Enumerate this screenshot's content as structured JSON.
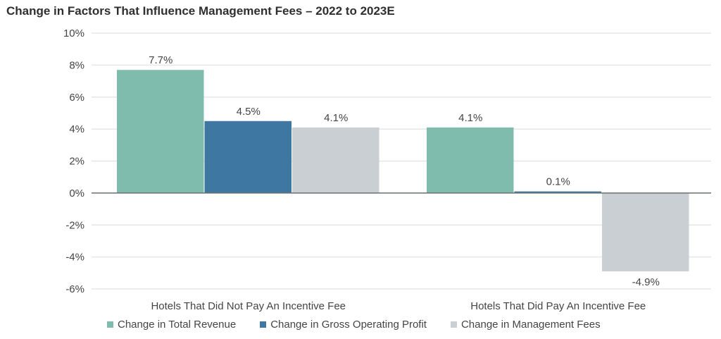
{
  "chart_data": {
    "type": "bar",
    "title": "Change in Factors That Influence Management Fees – 2022 to 2023E",
    "xlabel": "",
    "ylabel": "",
    "categories": [
      "Hotels That Did Not Pay An Incentive Fee",
      "Hotels That Did Pay An Incentive Fee"
    ],
    "series": [
      {
        "name": "Change in Total Revenue",
        "values": [
          7.7,
          4.1
        ],
        "labels": [
          "7.7%",
          "4.1%"
        ],
        "color": "#80bcae"
      },
      {
        "name": "Change in Gross Operating Profit",
        "values": [
          4.5,
          0.1
        ],
        "labels": [
          "4.5%",
          "0.1%"
        ],
        "color": "#3e77a2"
      },
      {
        "name": "Change in Management Fees",
        "values": [
          4.1,
          -4.9
        ],
        "labels": [
          "4.1%",
          "-4.9%"
        ],
        "color": "#c9cfd2"
      }
    ],
    "ylim": [
      -6,
      10
    ],
    "yticks": [
      10,
      8,
      6,
      4,
      2,
      0,
      -2,
      -4,
      -6
    ],
    "ytick_labels": [
      "10%",
      "8%",
      "6%",
      "4%",
      "2%",
      "0%",
      "-2%",
      "-4%",
      "-6%"
    ],
    "grid": true,
    "legend_position": "bottom"
  }
}
